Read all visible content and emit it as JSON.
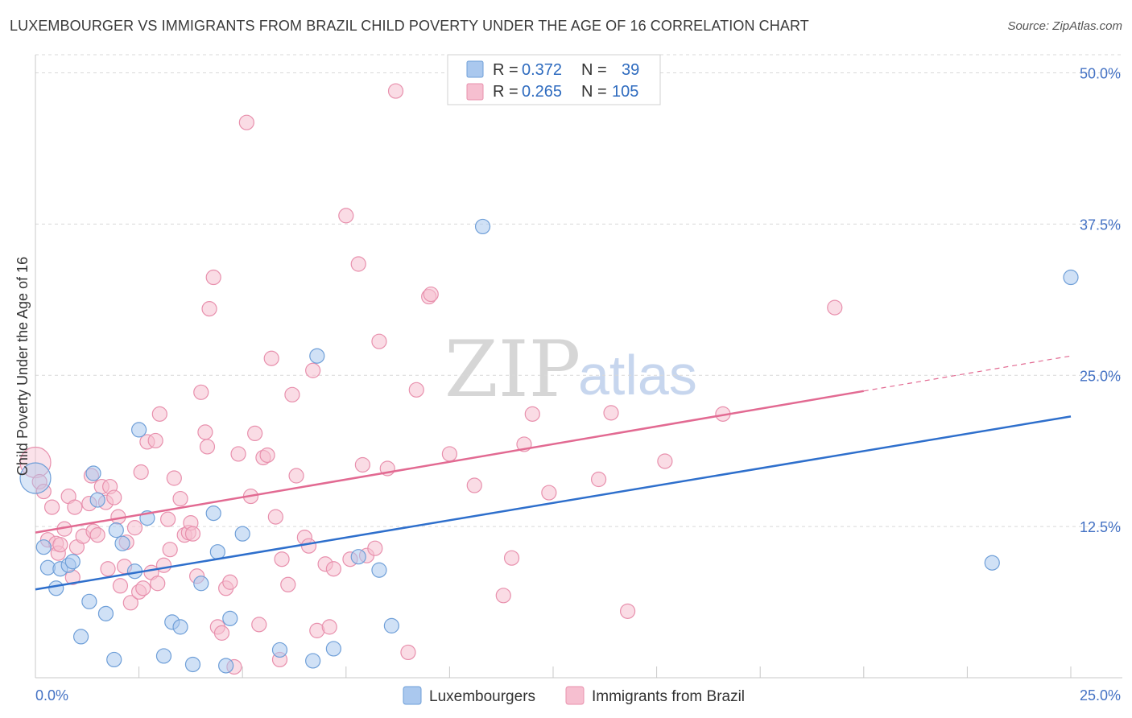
{
  "header": {
    "title": "LUXEMBOURGER VS IMMIGRANTS FROM BRAZIL CHILD POVERTY UNDER THE AGE OF 16 CORRELATION CHART",
    "source": "Source: ZipAtlas.com"
  },
  "watermark": {
    "zip": "ZIP",
    "atlas": "atlas"
  },
  "colors": {
    "blue_fill": "#aac8ee",
    "blue_stroke": "#6f9fd8",
    "blue_line": "#2e6fcc",
    "pink_fill": "#f6bfd0",
    "pink_stroke": "#e890ad",
    "pink_line": "#e26a92",
    "grid": "#d9d9d9",
    "value_text": "#2e6bbf"
  },
  "legend": {
    "rows": [
      {
        "r_label": "R =",
        "r_value": "0.372",
        "n_label": "N =",
        "n_value": "39"
      },
      {
        "r_label": "R =",
        "r_value": "0.265",
        "n_label": "N =",
        "n_value": "105"
      }
    ]
  },
  "chart_data": {
    "type": "scatter",
    "title": "LUXEMBOURGER VS IMMIGRANTS FROM BRAZIL CHILD POVERTY UNDER THE AGE OF 16 CORRELATION CHART",
    "xlabel": "",
    "ylabel": "Child Poverty Under the Age of 16",
    "xlim": [
      0,
      25
    ],
    "ylim": [
      0,
      51.5
    ],
    "x_tick_labels": [
      "0.0%",
      "25.0%"
    ],
    "y_ticks": [
      12.5,
      25.0,
      37.5,
      50.0
    ],
    "y_tick_labels": [
      "12.5%",
      "25.0%",
      "37.5%",
      "50.0%"
    ],
    "x_minor_ticks": [
      2.5,
      5,
      7.5,
      10,
      12.5,
      15,
      17.5,
      20,
      22.5,
      25
    ],
    "grid": true,
    "legend_position": "top-center",
    "series": [
      {
        "name": "Luxembourgers",
        "R": 0.372,
        "N": 39,
        "trend": {
          "x": [
            0,
            25
          ],
          "y": [
            7.3,
            21.6
          ]
        },
        "points": [
          {
            "x": 0.0,
            "y": 16.5,
            "big": true
          },
          {
            "x": 0.2,
            "y": 10.8
          },
          {
            "x": 0.3,
            "y": 9.1
          },
          {
            "x": 0.5,
            "y": 7.4
          },
          {
            "x": 0.6,
            "y": 9.0
          },
          {
            "x": 0.8,
            "y": 9.3
          },
          {
            "x": 0.9,
            "y": 9.6
          },
          {
            "x": 1.1,
            "y": 3.4
          },
          {
            "x": 1.3,
            "y": 6.3
          },
          {
            "x": 1.4,
            "y": 16.9
          },
          {
            "x": 1.5,
            "y": 14.7
          },
          {
            "x": 1.7,
            "y": 5.3
          },
          {
            "x": 1.9,
            "y": 1.5
          },
          {
            "x": 1.95,
            "y": 12.2
          },
          {
            "x": 2.1,
            "y": 11.1
          },
          {
            "x": 2.4,
            "y": 8.8
          },
          {
            "x": 2.5,
            "y": 20.5
          },
          {
            "x": 2.7,
            "y": 13.2
          },
          {
            "x": 3.1,
            "y": 1.8
          },
          {
            "x": 3.3,
            "y": 4.6
          },
          {
            "x": 3.5,
            "y": 4.2
          },
          {
            "x": 3.8,
            "y": 1.1
          },
          {
            "x": 4.0,
            "y": 7.8
          },
          {
            "x": 4.3,
            "y": 13.6
          },
          {
            "x": 4.4,
            "y": 10.4
          },
          {
            "x": 4.6,
            "y": 1.0
          },
          {
            "x": 4.7,
            "y": 4.9
          },
          {
            "x": 5.0,
            "y": 11.9
          },
          {
            "x": 5.9,
            "y": 2.3
          },
          {
            "x": 6.7,
            "y": 1.4
          },
          {
            "x": 6.8,
            "y": 26.6
          },
          {
            "x": 7.2,
            "y": 2.4
          },
          {
            "x": 7.8,
            "y": 10.0
          },
          {
            "x": 8.3,
            "y": 8.9
          },
          {
            "x": 8.6,
            "y": 4.3
          },
          {
            "x": 10.8,
            "y": 37.3
          },
          {
            "x": 23.1,
            "y": 9.5
          },
          {
            "x": 25.0,
            "y": 33.1
          }
        ]
      },
      {
        "name": "Immigrants from Brazil",
        "R": 0.265,
        "N": 105,
        "trend": {
          "x": [
            0,
            20
          ],
          "y": [
            12.0,
            23.7
          ]
        },
        "trend_dashed": {
          "x": [
            20,
            25
          ],
          "y": [
            23.7,
            26.6
          ]
        },
        "points": [
          {
            "x": 0.0,
            "y": 17.8,
            "big": true
          },
          {
            "x": 0.1,
            "y": 16.2
          },
          {
            "x": 0.2,
            "y": 15.4
          },
          {
            "x": 0.3,
            "y": 11.4
          },
          {
            "x": 0.4,
            "y": 14.1
          },
          {
            "x": 0.5,
            "y": 11.1
          },
          {
            "x": 0.55,
            "y": 10.3
          },
          {
            "x": 0.6,
            "y": 11.0
          },
          {
            "x": 0.7,
            "y": 12.3
          },
          {
            "x": 0.8,
            "y": 15.0
          },
          {
            "x": 0.9,
            "y": 8.3
          },
          {
            "x": 0.95,
            "y": 14.1
          },
          {
            "x": 1.0,
            "y": 10.8
          },
          {
            "x": 1.15,
            "y": 11.7
          },
          {
            "x": 1.3,
            "y": 14.4
          },
          {
            "x": 1.35,
            "y": 16.7
          },
          {
            "x": 1.4,
            "y": 12.1
          },
          {
            "x": 1.5,
            "y": 11.8
          },
          {
            "x": 1.6,
            "y": 15.8
          },
          {
            "x": 1.7,
            "y": 14.5
          },
          {
            "x": 1.75,
            "y": 9.0
          },
          {
            "x": 1.8,
            "y": 15.8
          },
          {
            "x": 1.9,
            "y": 14.9
          },
          {
            "x": 2.0,
            "y": 13.3
          },
          {
            "x": 2.05,
            "y": 7.6
          },
          {
            "x": 2.15,
            "y": 9.2
          },
          {
            "x": 2.2,
            "y": 11.2
          },
          {
            "x": 2.3,
            "y": 6.2
          },
          {
            "x": 2.4,
            "y": 12.4
          },
          {
            "x": 2.5,
            "y": 7.1
          },
          {
            "x": 2.55,
            "y": 17.0
          },
          {
            "x": 2.6,
            "y": 7.4
          },
          {
            "x": 2.7,
            "y": 19.5
          },
          {
            "x": 2.8,
            "y": 8.7
          },
          {
            "x": 2.9,
            "y": 19.6
          },
          {
            "x": 2.95,
            "y": 7.8
          },
          {
            "x": 3.0,
            "y": 21.8
          },
          {
            "x": 3.1,
            "y": 9.3
          },
          {
            "x": 3.2,
            "y": 13.1
          },
          {
            "x": 3.25,
            "y": 10.6
          },
          {
            "x": 3.35,
            "y": 16.5
          },
          {
            "x": 3.5,
            "y": 14.8
          },
          {
            "x": 3.6,
            "y": 11.8
          },
          {
            "x": 3.7,
            "y": 12.0
          },
          {
            "x": 3.75,
            "y": 12.8
          },
          {
            "x": 3.8,
            "y": 11.9
          },
          {
            "x": 3.9,
            "y": 8.4
          },
          {
            "x": 4.0,
            "y": 23.6
          },
          {
            "x": 4.1,
            "y": 20.3
          },
          {
            "x": 4.15,
            "y": 19.1
          },
          {
            "x": 4.2,
            "y": 30.5
          },
          {
            "x": 4.3,
            "y": 33.1
          },
          {
            "x": 4.4,
            "y": 4.2
          },
          {
            "x": 4.5,
            "y": 3.7
          },
          {
            "x": 4.6,
            "y": 7.4
          },
          {
            "x": 4.7,
            "y": 7.9
          },
          {
            "x": 4.8,
            "y": 0.9
          },
          {
            "x": 4.9,
            "y": 18.5
          },
          {
            "x": 5.1,
            "y": 45.9
          },
          {
            "x": 5.2,
            "y": 15.0
          },
          {
            "x": 5.3,
            "y": 20.2
          },
          {
            "x": 5.4,
            "y": 4.4
          },
          {
            "x": 5.5,
            "y": 18.2
          },
          {
            "x": 5.6,
            "y": 18.4
          },
          {
            "x": 5.7,
            "y": 26.4
          },
          {
            "x": 5.8,
            "y": 13.3
          },
          {
            "x": 5.9,
            "y": 1.5
          },
          {
            "x": 5.95,
            "y": 9.8
          },
          {
            "x": 6.1,
            "y": 7.7
          },
          {
            "x": 6.2,
            "y": 23.4
          },
          {
            "x": 6.3,
            "y": 16.7
          },
          {
            "x": 6.5,
            "y": 11.6
          },
          {
            "x": 6.6,
            "y": 10.9
          },
          {
            "x": 6.7,
            "y": 25.4
          },
          {
            "x": 6.8,
            "y": 3.9
          },
          {
            "x": 7.0,
            "y": 9.4
          },
          {
            "x": 7.1,
            "y": 4.2
          },
          {
            "x": 7.2,
            "y": 9.0
          },
          {
            "x": 7.5,
            "y": 38.2
          },
          {
            "x": 7.6,
            "y": 9.8
          },
          {
            "x": 7.8,
            "y": 34.2
          },
          {
            "x": 7.9,
            "y": 17.6
          },
          {
            "x": 8.0,
            "y": 10.1
          },
          {
            "x": 8.2,
            "y": 10.7
          },
          {
            "x": 8.3,
            "y": 27.8
          },
          {
            "x": 8.5,
            "y": 17.3
          },
          {
            "x": 8.7,
            "y": 48.5
          },
          {
            "x": 9.0,
            "y": 2.1
          },
          {
            "x": 9.2,
            "y": 23.8
          },
          {
            "x": 9.5,
            "y": 31.5
          },
          {
            "x": 9.55,
            "y": 31.7
          },
          {
            "x": 10.0,
            "y": 18.5
          },
          {
            "x": 10.6,
            "y": 15.9
          },
          {
            "x": 11.3,
            "y": 6.8
          },
          {
            "x": 11.5,
            "y": 9.9
          },
          {
            "x": 11.8,
            "y": 19.3
          },
          {
            "x": 12.0,
            "y": 21.8
          },
          {
            "x": 12.4,
            "y": 15.3
          },
          {
            "x": 13.6,
            "y": 16.4
          },
          {
            "x": 13.9,
            "y": 21.9
          },
          {
            "x": 14.3,
            "y": 5.5
          },
          {
            "x": 15.2,
            "y": 17.9
          },
          {
            "x": 16.6,
            "y": 21.8
          },
          {
            "x": 19.3,
            "y": 30.6
          }
        ]
      }
    ]
  }
}
